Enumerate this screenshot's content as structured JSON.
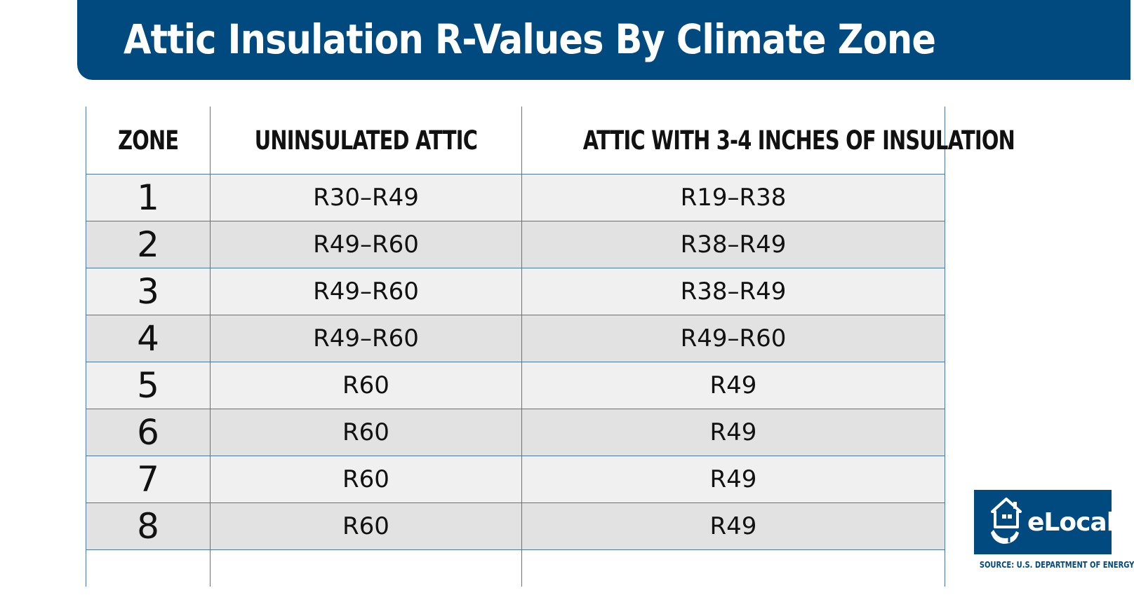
{
  "title": "Attic Insulation R-Values By Climate Zone",
  "colors": {
    "brand_blue": "#004a80",
    "row_light": "#f0f0f0",
    "row_dark": "#e2e2e2",
    "grid_line": "#4c78a8"
  },
  "chart_data": {
    "type": "table",
    "columns": [
      "ZONE",
      "UNINSULATED ATTIC",
      "ATTIC WITH 3-4 INCHES OF INSULATION"
    ],
    "rows": [
      {
        "zone": "1",
        "uninsulated": "R30–R49",
        "insulated": "R19–R38"
      },
      {
        "zone": "2",
        "uninsulated": "R49–R60",
        "insulated": "R38–R49"
      },
      {
        "zone": "3",
        "uninsulated": "R49–R60",
        "insulated": "R38–R49"
      },
      {
        "zone": "4",
        "uninsulated": "R49–R60",
        "insulated": "R49–R60"
      },
      {
        "zone": "5",
        "uninsulated": "R60",
        "insulated": "R49"
      },
      {
        "zone": "6",
        "uninsulated": "R60",
        "insulated": "R49"
      },
      {
        "zone": "7",
        "uninsulated": "R60",
        "insulated": "R49"
      },
      {
        "zone": "8",
        "uninsulated": "R60",
        "insulated": "R49"
      }
    ]
  },
  "logo": {
    "text": "eLocal",
    "icon": "house-hand-icon"
  },
  "source": "SOURCE: U.S. DEPARTMENT OF ENERGY"
}
